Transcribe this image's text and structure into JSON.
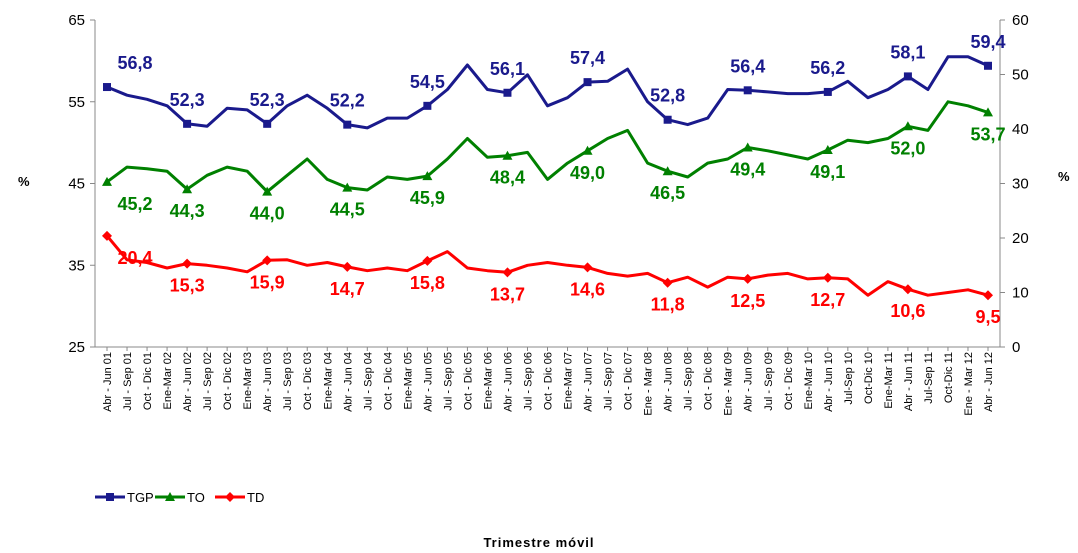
{
  "chart_data": {
    "type": "line",
    "x_label": "Trimestre móvil",
    "y_label": "%",
    "y2_label": "%",
    "categories": [
      "Abr - Jun 01",
      "Jul - Sep 01",
      "Oct - Dic 01",
      "Ene-Mar 02",
      "Abr - Jun 02",
      "Jul - Sep 02",
      "Oct - Dic 02",
      "Ene-Mar 03",
      "Abr - Jun 03",
      "Jul - Sep 03",
      "Oct - Dic 03",
      "Ene-Mar 04",
      "Abr - Jun 04",
      "Jul - Sep 04",
      "Oct - Dic 04",
      "Ene-Mar 05",
      "Abr - Jun 05",
      "Jul - Sep 05",
      "Oct - Dic 05",
      "Ene-Mar 06",
      "Abr - Jun 06",
      "Jul - Sep 06",
      "Oct - Dic 06",
      "Ene-Mar 07",
      "Abr - Jun 07",
      "Jul - Sep 07",
      "Oct - Dic 07",
      "Ene - Mar 08",
      "Abr - Jun 08",
      "Jul - Sep 08",
      "Oct - Dic 08",
      "Ene - Mar 09",
      "Abr - Jun 09",
      "Jul - Sep 09",
      "Oct - Dic 09",
      "Ene-Mar 10",
      "Abr - Jun 10",
      "Jul-Sep 10",
      "Oct-Dic 10",
      "Ene-Mar 11",
      "Abr - Jun 11",
      "Jul-Sep 11",
      "Oct-Dic 11",
      "Ene - Mar 12",
      "Abr - Jun 12"
    ],
    "ylim": [
      25,
      65
    ],
    "yticks": [
      25,
      35,
      45,
      55,
      65
    ],
    "y2lim": [
      0,
      60
    ],
    "y2ticks": [
      0,
      10,
      20,
      30,
      40,
      50,
      60
    ],
    "legend": "bottom-left",
    "series": [
      {
        "name": "TGP",
        "color": "#1a1a8c",
        "marker": "square",
        "values": [
          56.8,
          55.8,
          55.3,
          54.5,
          52.3,
          52.0,
          54.2,
          54.0,
          52.3,
          54.5,
          55.8,
          54.2,
          52.2,
          51.8,
          53.0,
          53.0,
          54.5,
          56.5,
          59.5,
          56.5,
          56.1,
          58.3,
          54.5,
          55.5,
          57.4,
          57.5,
          59.0,
          55.0,
          52.8,
          52.2,
          53.0,
          56.5,
          56.4,
          56.2,
          56.0,
          56.0,
          56.2,
          57.5,
          55.5,
          56.5,
          58.1,
          56.5,
          60.5,
          60.5,
          59.4
        ],
        "value_labels": [
          "56,8",
          null,
          null,
          null,
          "52,3",
          null,
          null,
          null,
          "52,3",
          null,
          null,
          null,
          "52,2",
          null,
          null,
          null,
          "54,5",
          null,
          null,
          null,
          "56,1",
          null,
          null,
          null,
          "57,4",
          null,
          null,
          null,
          "52,8",
          null,
          null,
          null,
          "56,4",
          null,
          null,
          null,
          "56,2",
          null,
          null,
          null,
          "58,1",
          null,
          null,
          null,
          "59,4"
        ]
      },
      {
        "name": "TO",
        "color": "#008000",
        "marker": "triangle",
        "values": [
          45.2,
          47.0,
          46.8,
          46.5,
          44.3,
          46.0,
          47.0,
          46.5,
          44.0,
          46.0,
          48.0,
          45.5,
          44.5,
          44.2,
          45.8,
          45.5,
          45.9,
          48.0,
          50.5,
          48.2,
          48.4,
          48.8,
          45.5,
          47.5,
          49.0,
          50.5,
          51.5,
          47.5,
          46.5,
          45.8,
          47.5,
          48.0,
          49.4,
          49.0,
          48.5,
          48.0,
          49.1,
          50.3,
          50.0,
          50.5,
          52.0,
          51.5,
          55.0,
          54.5,
          53.7
        ],
        "value_labels": [
          "45,2",
          null,
          null,
          null,
          "44,3",
          null,
          null,
          null,
          "44,0",
          null,
          null,
          null,
          "44,5",
          null,
          null,
          null,
          "45,9",
          null,
          null,
          null,
          "48,4",
          null,
          null,
          null,
          "49,0",
          null,
          null,
          null,
          "46,5",
          null,
          null,
          null,
          "49,4",
          null,
          null,
          null,
          "49,1",
          null,
          null,
          null,
          "52,0",
          null,
          null,
          null,
          "53,7"
        ]
      },
      {
        "name": "TD",
        "color": "#ff0000",
        "marker": "diamond",
        "axis": "y2",
        "values": [
          20.4,
          16.0,
          15.5,
          14.5,
          15.3,
          15.0,
          14.5,
          13.8,
          15.9,
          16.0,
          15.0,
          15.5,
          14.7,
          14.0,
          14.5,
          14.0,
          15.8,
          17.5,
          14.5,
          14.0,
          13.7,
          15.0,
          15.5,
          15.0,
          14.6,
          13.5,
          13.0,
          13.5,
          11.8,
          12.8,
          11.0,
          12.8,
          12.5,
          13.2,
          13.5,
          12.5,
          12.7,
          12.5,
          9.5,
          12.0,
          10.6,
          9.5,
          10.0,
          10.5,
          9.5
        ],
        "value_labels": [
          "20,4",
          null,
          null,
          null,
          "15,3",
          null,
          null,
          null,
          "15,9",
          null,
          null,
          null,
          "14,7",
          null,
          null,
          null,
          "15,8",
          null,
          null,
          null,
          "13,7",
          null,
          null,
          null,
          "14,6",
          null,
          null,
          null,
          "11,8",
          null,
          null,
          null,
          "12,5",
          null,
          null,
          null,
          "12,7",
          null,
          null,
          null,
          "10,6",
          null,
          null,
          null,
          "9,5"
        ]
      }
    ]
  }
}
